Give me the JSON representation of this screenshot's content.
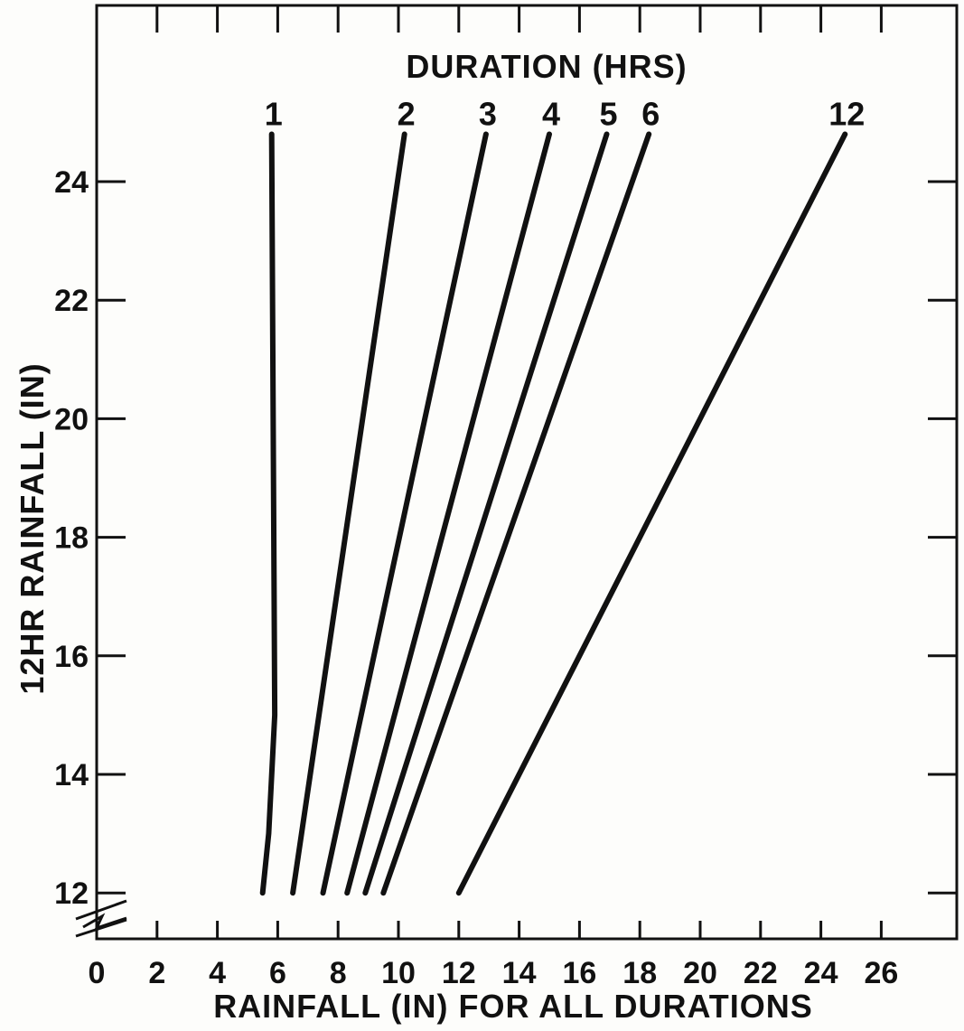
{
  "chart_data": {
    "type": "line",
    "title": "DURATION (HRS)",
    "xlabel": "RAINFALL (IN) FOR ALL DURATIONS",
    "ylabel": "12HR RAINFALL (IN)",
    "xlim": [
      0,
      28
    ],
    "ylim": [
      11.4,
      27
    ],
    "x_ticks": [
      0,
      2,
      4,
      6,
      8,
      10,
      12,
      14,
      16,
      18,
      20,
      22,
      24,
      26
    ],
    "x_tick_labels": [
      "0",
      "2",
      "4",
      "6",
      "8",
      "10",
      "12",
      "14",
      "16",
      "18",
      "20",
      "22",
      "24",
      "26"
    ],
    "y_ticks": [
      12,
      14,
      16,
      18,
      20,
      22,
      24
    ],
    "y_tick_labels": [
      "12",
      "14",
      "16",
      "18",
      "20",
      "22",
      "24"
    ],
    "axis_break": true,
    "grid": false,
    "series": [
      {
        "name": "1",
        "label": "1",
        "points": [
          [
            5.5,
            12.0
          ],
          [
            5.7,
            13.0
          ],
          [
            5.9,
            15.0
          ],
          [
            5.8,
            24.8
          ]
        ]
      },
      {
        "name": "2",
        "label": "2",
        "points": [
          [
            6.5,
            12.0
          ],
          [
            10.2,
            24.8
          ]
        ]
      },
      {
        "name": "3",
        "label": "3",
        "points": [
          [
            7.5,
            12.0
          ],
          [
            12.9,
            24.8
          ]
        ]
      },
      {
        "name": "4",
        "label": "4",
        "points": [
          [
            8.3,
            12.0
          ],
          [
            15.0,
            24.8
          ]
        ]
      },
      {
        "name": "5",
        "label": "5",
        "points": [
          [
            8.9,
            12.0
          ],
          [
            16.9,
            24.8
          ]
        ]
      },
      {
        "name": "6",
        "label": "6",
        "points": [
          [
            9.5,
            12.0
          ],
          [
            18.3,
            24.8
          ]
        ]
      },
      {
        "name": "12",
        "label": "12",
        "points": [
          [
            12.0,
            12.0
          ],
          [
            24.8,
            24.8
          ]
        ]
      }
    ]
  }
}
